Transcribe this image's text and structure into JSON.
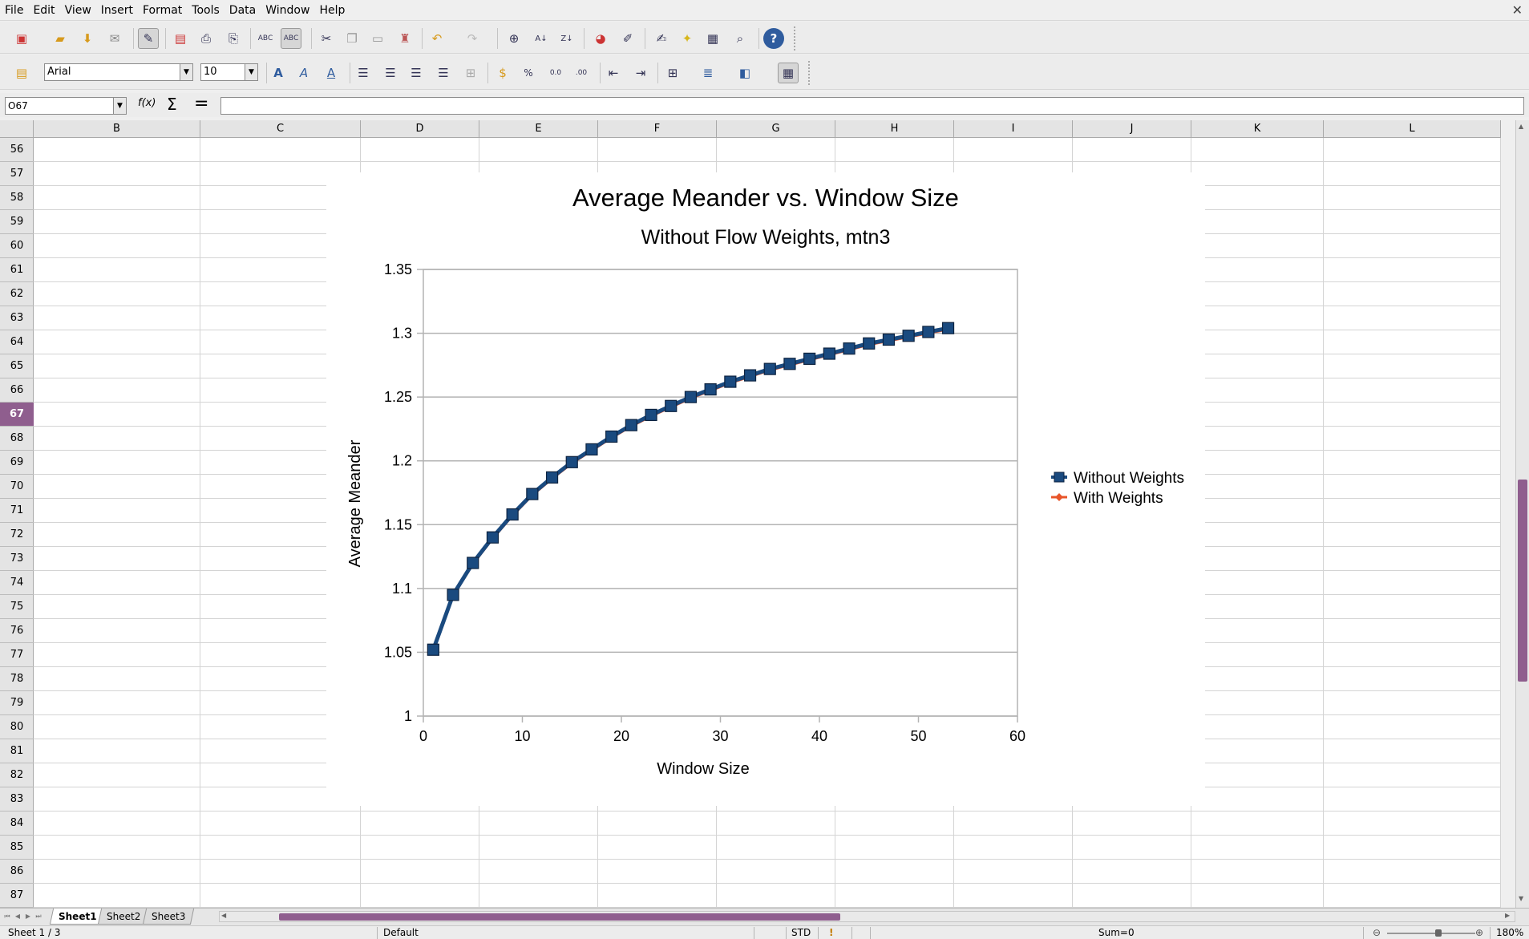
{
  "menu": [
    "File",
    "Edit",
    "View",
    "Insert",
    "Format",
    "Tools",
    "Data",
    "Window",
    "Help"
  ],
  "formatting": {
    "font_name": "Arial",
    "font_size": "10"
  },
  "formula_bar": {
    "cell_ref": "O67",
    "fx_label": "f(x)",
    "sum_label": "Σ",
    "equals_label": "=",
    "content": ""
  },
  "columns": [
    "B",
    "C",
    "D",
    "E",
    "F",
    "G",
    "H",
    "I",
    "J",
    "K",
    "L"
  ],
  "rows": [
    "56",
    "57",
    "58",
    "59",
    "60",
    "61",
    "62",
    "63",
    "64",
    "65",
    "66",
    "67",
    "68",
    "69",
    "70",
    "71",
    "72",
    "73",
    "74",
    "75",
    "76",
    "77",
    "78",
    "79",
    "80",
    "81",
    "82",
    "83",
    "84",
    "85",
    "86",
    "87"
  ],
  "selected_row": "67",
  "sheets": [
    "Sheet1",
    "Sheet2",
    "Sheet3"
  ],
  "active_sheet": "Sheet1",
  "status": {
    "sheet": "Sheet 1 / 3",
    "style": "Default",
    "mode": "STD",
    "sum": "Sum=0",
    "zoom": "180%"
  },
  "chart_data": {
    "type": "line",
    "title": "Average Meander vs. Window Size",
    "subtitle": "Without Flow Weights, mtn3",
    "xlabel": "Window Size",
    "ylabel": "Average Meander",
    "xlim": [
      0,
      60
    ],
    "ylim": [
      1,
      1.35
    ],
    "x_ticks": [
      "0",
      "10",
      "20",
      "30",
      "40",
      "50",
      "60"
    ],
    "y_ticks": [
      "1",
      "1.05",
      "1.1",
      "1.15",
      "1.2",
      "1.25",
      "1.3",
      "1.35"
    ],
    "grid": "horizontal",
    "legend_position": "right",
    "x": [
      1,
      3,
      5,
      7,
      9,
      11,
      13,
      15,
      17,
      19,
      21,
      23,
      25,
      27,
      29,
      31,
      33,
      35,
      37,
      39,
      41,
      43,
      45,
      47,
      49,
      51,
      53
    ],
    "series": [
      {
        "name": "Without Weights",
        "color": "#1a4a7f",
        "marker": "square",
        "values": [
          1.052,
          1.095,
          1.12,
          1.14,
          1.158,
          1.174,
          1.187,
          1.199,
          1.209,
          1.219,
          1.228,
          1.236,
          1.243,
          1.25,
          1.256,
          1.262,
          1.267,
          1.272,
          1.276,
          1.28,
          1.284,
          1.288,
          1.292,
          1.295,
          1.298,
          1.301,
          1.304
        ]
      },
      {
        "name": "With Weights",
        "color": "#e8552a",
        "marker": "diamond",
        "values": [
          1.051,
          1.094,
          1.119,
          1.139,
          1.157,
          1.173,
          1.186,
          1.198,
          1.208,
          1.218,
          1.227,
          1.235,
          1.242,
          1.249,
          1.255,
          1.261,
          1.266,
          1.271,
          1.275,
          1.279,
          1.283,
          1.287,
          1.291,
          1.294,
          1.297,
          1.3,
          1.303
        ]
      }
    ]
  }
}
